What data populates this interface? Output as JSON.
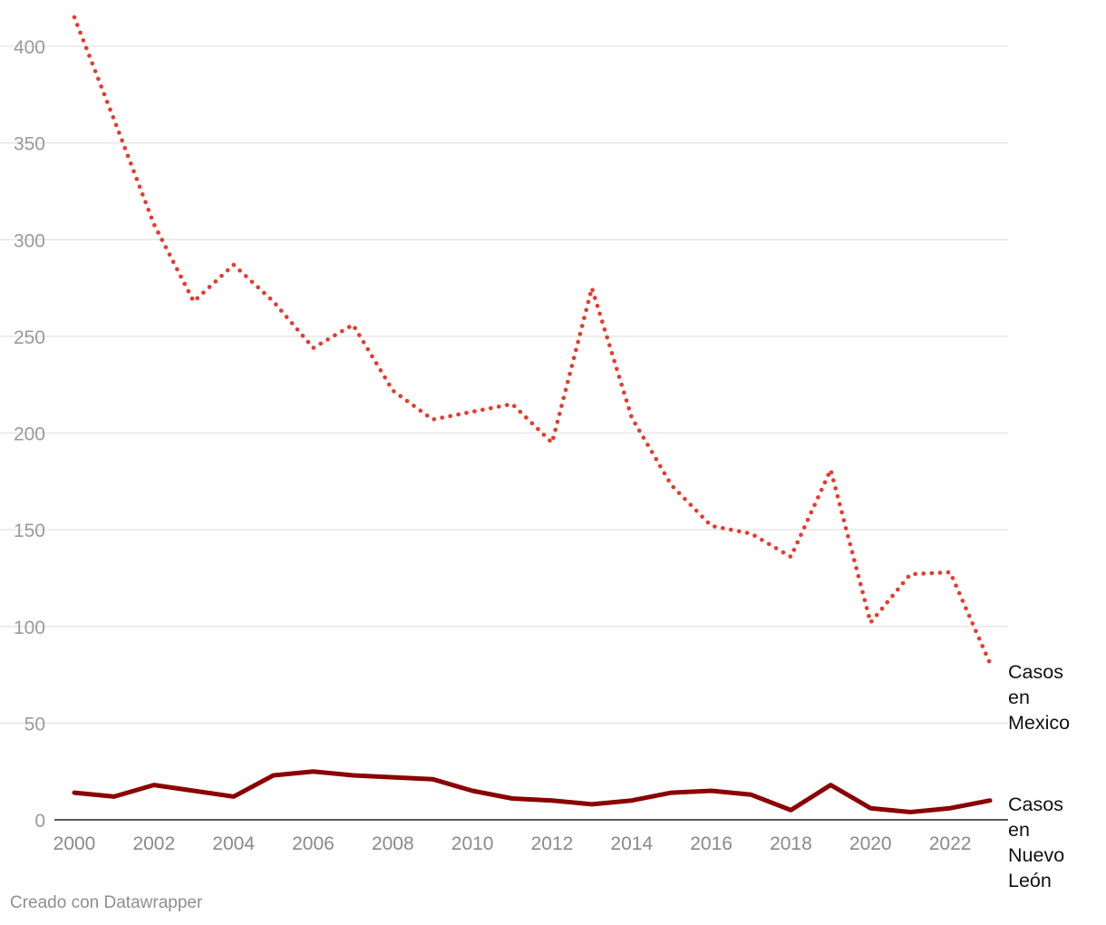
{
  "chart_data": {
    "type": "line",
    "title": "",
    "xlabel": "",
    "ylabel": "",
    "x": [
      2000,
      2001,
      2002,
      2003,
      2004,
      2005,
      2006,
      2007,
      2008,
      2009,
      2010,
      2011,
      2012,
      2013,
      2014,
      2015,
      2016,
      2017,
      2018,
      2019,
      2020,
      2021,
      2022,
      2023
    ],
    "x_ticks": [
      "2000",
      "2002",
      "2004",
      "2006",
      "2008",
      "2010",
      "2012",
      "2014",
      "2016",
      "2018",
      "2020",
      "2022"
    ],
    "y_ticks": [
      "0",
      "50",
      "100",
      "150",
      "200",
      "250",
      "300",
      "350",
      "400"
    ],
    "ylim": [
      0,
      415
    ],
    "grid": true,
    "series": [
      {
        "name": "Casos en Mexico",
        "label_lines": [
          "Casos",
          "en",
          "Mexico"
        ],
        "color": "#e8392c",
        "style": "dotted",
        "values": [
          415,
          362,
          308,
          268,
          287,
          268,
          244,
          256,
          222,
          207,
          211,
          215,
          195,
          275,
          208,
          173,
          152,
          148,
          136,
          181,
          102,
          127,
          128,
          81
        ]
      },
      {
        "name": "Casos en Nuevo León",
        "label_lines": [
          "Casos",
          "en",
          "Nuevo",
          "León"
        ],
        "color": "#8b0000",
        "style": "solid",
        "values": [
          14,
          12,
          18,
          15,
          12,
          23,
          25,
          23,
          22,
          21,
          15,
          11,
          10,
          8,
          10,
          14,
          15,
          13,
          5,
          18,
          6,
          4,
          6,
          10
        ]
      }
    ]
  },
  "footer": {
    "credit": "Creado con Datawrapper"
  }
}
